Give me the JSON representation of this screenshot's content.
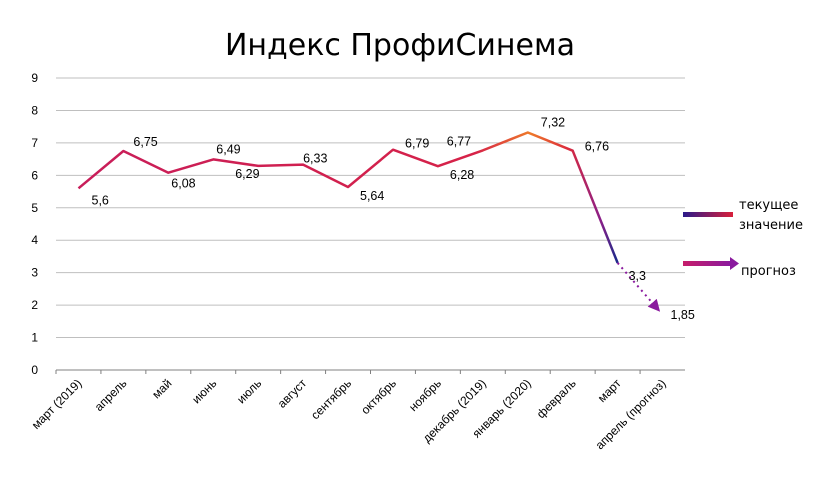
{
  "chart_data": {
    "type": "line",
    "title": "Индекс ПрофиСинема",
    "categories": [
      "март (2019)",
      "апрель",
      "май",
      "июнь",
      "июль",
      "август",
      "сентябрь",
      "октябрь",
      "ноябрь",
      "декабрь (2019)",
      "январь (2020)",
      "февраль",
      "март",
      "апрель (прогноз)"
    ],
    "y_ticks": [
      "0",
      "1",
      "2",
      "3",
      "4",
      "5",
      "6",
      "7",
      "8",
      "9"
    ],
    "ylim": [
      0,
      9
    ],
    "grid": true,
    "legend_position": "right",
    "series": [
      {
        "name": "текущее значение",
        "values": [
          5.6,
          6.75,
          6.08,
          6.49,
          6.29,
          6.33,
          5.64,
          6.79,
          6.28,
          6.77,
          7.32,
          6.76,
          3.3,
          null
        ],
        "labels": [
          "5,6",
          "6,75",
          "6,08",
          "6,49",
          "6,29",
          "6,33",
          "5,64",
          "6,79",
          "6,28",
          "6,77",
          "7,32",
          "6,76",
          "3,3",
          ""
        ],
        "color": "#cc1d55"
      },
      {
        "name": "прогноз",
        "values": [
          null,
          null,
          null,
          null,
          null,
          null,
          null,
          null,
          null,
          null,
          null,
          null,
          3.3,
          1.85
        ],
        "labels": [
          "",
          "",
          "",
          "",
          "",
          "",
          "",
          "",
          "",
          "",
          "",
          "",
          "",
          "1,85"
        ],
        "color": "#8a1a9e"
      }
    ],
    "legend": [
      {
        "label_line1": "текущее",
        "label_line2": "значение"
      },
      {
        "label_line1": "прогноз",
        "label_line2": ""
      }
    ]
  }
}
